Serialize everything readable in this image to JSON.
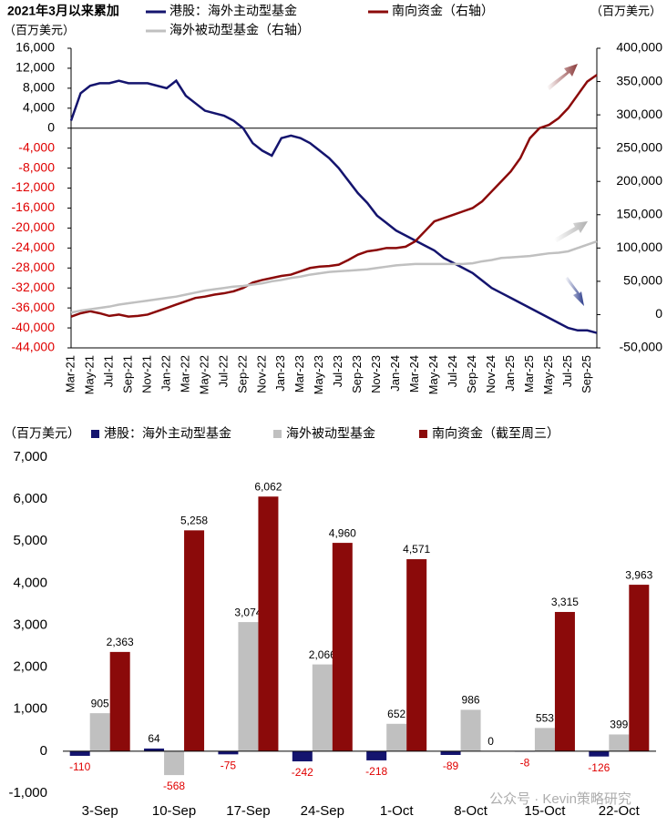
{
  "chart_data": [
    {
      "type": "line",
      "title": "2021年3月以来累加",
      "y_label": "（百万美元）",
      "y2_label": "（百万美元）",
      "categories": [
        "Mar-21",
        null,
        "May-21",
        null,
        "Jul-21",
        null,
        "Sep-21",
        null,
        "Nov-21",
        null,
        "Jan-22",
        null,
        "Mar-22",
        null,
        "May-22",
        null,
        "Jul-22",
        null,
        "Sep-22",
        null,
        "Nov-22",
        null,
        "Jan-23",
        null,
        "Mar-23",
        null,
        "May-23",
        null,
        "Jul-23",
        null,
        "Sep-23",
        null,
        "Nov-23",
        null,
        "Jan-24",
        null,
        "Mar-24",
        null,
        "May-24",
        null,
        "Jul-24",
        null,
        "Sep-24",
        null,
        "Nov-24",
        null,
        "Jan-25",
        null,
        "Mar-25",
        null,
        "May-25",
        null,
        "Jul-25",
        null,
        "Sep-25",
        null
      ],
      "series": [
        {
          "name": "港股：海外主动型基金",
          "color": "#14146e",
          "values": [
            1500,
            7000,
            8500,
            9000,
            9000,
            9500,
            9000,
            9000,
            9000,
            8500,
            8000,
            9500,
            6500,
            5000,
            3500,
            3000,
            2500,
            1500,
            0,
            -3000,
            -4500,
            -5500,
            -2000,
            -1500,
            -2000,
            -3000,
            -4500,
            -6000,
            -8000,
            -10500,
            -13000,
            -15000,
            -17500,
            -19000,
            -20500,
            -21500,
            -22500,
            -23500,
            -24500,
            -26000,
            -27000,
            -28000,
            -29000,
            -30500,
            -32000,
            -33000,
            -34000,
            -35000,
            -36000,
            -37000,
            -38000,
            -39000,
            -40000,
            -40500,
            -40500,
            -41000
          ]
        },
        {
          "name": "南向资金（右轴）",
          "color": "#8b0a0a",
          "axis": "y2",
          "values": [
            -3000,
            2000,
            5000,
            2000,
            -2000,
            0,
            -3000,
            -2000,
            0,
            5000,
            10000,
            15000,
            20000,
            25000,
            27000,
            30000,
            32000,
            35000,
            40000,
            48000,
            52000,
            55000,
            58000,
            60000,
            65000,
            70000,
            72000,
            73000,
            75000,
            82000,
            90000,
            95000,
            97000,
            100000,
            100000,
            102000,
            110000,
            125000,
            140000,
            145000,
            150000,
            155000,
            160000,
            170000,
            185000,
            200000,
            215000,
            235000,
            265000,
            280000,
            285000,
            295000,
            310000,
            330000,
            350000,
            360000
          ]
        },
        {
          "name": "海外被动型基金（右轴）",
          "color": "#c0c0c0",
          "axis": "y2",
          "values": [
            3000,
            6000,
            8000,
            10000,
            12000,
            15000,
            17000,
            19000,
            21000,
            23000,
            25000,
            27000,
            30000,
            33000,
            36000,
            38000,
            40000,
            42000,
            43000,
            45000,
            47000,
            50000,
            52000,
            55000,
            57000,
            60000,
            62000,
            64000,
            65000,
            66000,
            67000,
            68000,
            70000,
            72000,
            74000,
            75000,
            76000,
            76000,
            76000,
            76000,
            76000,
            76000,
            77000,
            80000,
            82000,
            85000,
            86000,
            87000,
            88000,
            90000,
            92000,
            93000,
            95000,
            100000,
            105000,
            110000
          ]
        }
      ],
      "ylim": [
        -44000,
        16000
      ],
      "yticks": [
        {
          "value": 16000,
          "label": "16,000"
        },
        {
          "value": 12000,
          "label": "12,000"
        },
        {
          "value": 8000,
          "label": "8,000"
        },
        {
          "value": 4000,
          "label": "4,000"
        },
        0,
        {
          "value": -4000,
          "label": "-4,000"
        },
        {
          "value": -8000,
          "label": "-8,000"
        },
        {
          "value": -12000,
          "label": "-12,000"
        },
        {
          "value": -16000,
          "label": "-16,000"
        },
        {
          "value": -20000,
          "label": "-20,000"
        },
        {
          "value": -24000,
          "label": "-24,000"
        },
        {
          "value": -28000,
          "label": "-28,000"
        },
        {
          "value": -32000,
          "label": "-32,000"
        },
        {
          "value": -36000,
          "label": "-36,000"
        },
        {
          "value": -40000,
          "label": "-40,000"
        },
        {
          "value": -44000,
          "label": "-44,000"
        }
      ],
      "y2lim": [
        -50000,
        400000
      ],
      "y2ticks": [
        {
          "value": 400000,
          "label": "400,000"
        },
        {
          "value": 350000,
          "label": "350,000"
        },
        {
          "value": 300000,
          "label": "300,000"
        },
        {
          "value": 250000,
          "label": "250,000"
        },
        {
          "value": 200000,
          "label": "200,000"
        },
        {
          "value": 150000,
          "label": "150,000"
        },
        {
          "value": 100000,
          "label": "100,000"
        },
        {
          "value": 50000,
          "label": "50,000"
        },
        0,
        {
          "value": -50000,
          "label": "-50,000"
        }
      ]
    },
    {
      "type": "bar",
      "y_label": "（百万美元）",
      "categories": [
        "3-Sep",
        "10-Sep",
        "17-Sep",
        "24-Sep",
        "1-Oct",
        "8-Oct",
        "15-Oct",
        "22-Oct"
      ],
      "series": [
        {
          "name": "港股：海外主动型基金",
          "color": "#14146e",
          "values": [
            -110,
            64,
            -75,
            -242,
            -218,
            -89,
            -8,
            -126
          ],
          "value_labels": [
            "-110",
            "64",
            "-75",
            "-242",
            "-218",
            "-89",
            "-8",
            "-126"
          ]
        },
        {
          "name": "海外被动型基金",
          "color": "#c0c0c0",
          "values": [
            905,
            -568,
            3074,
            2066,
            652,
            986,
            553,
            399
          ],
          "value_labels": [
            "905",
            "-568",
            "3,074",
            "2,066",
            "652",
            "986",
            "553",
            "399"
          ]
        },
        {
          "name": "南向资金（截至周三）",
          "color": "#8b0a0a",
          "values": [
            2363,
            5258,
            6062,
            4960,
            4571,
            0,
            3315,
            3963
          ],
          "value_labels": [
            "2,363",
            "5,258",
            "6,062",
            "4,960",
            "4,571",
            "0",
            "3,315",
            "3,963"
          ]
        }
      ],
      "ylim": [
        -1000,
        7000
      ],
      "yticks": [
        {
          "value": 7000,
          "label": "7,000"
        },
        {
          "value": 6000,
          "label": "6,000"
        },
        {
          "value": 5000,
          "label": "5,000"
        },
        {
          "value": 4000,
          "label": "4,000"
        },
        {
          "value": 3000,
          "label": "3,000"
        },
        {
          "value": 2000,
          "label": "2,000"
        },
        {
          "value": 1000,
          "label": "1,000"
        },
        0,
        {
          "value": -1000,
          "label": "-1,000"
        }
      ]
    }
  ],
  "watermark": "公众号 · Kevin策略研究"
}
